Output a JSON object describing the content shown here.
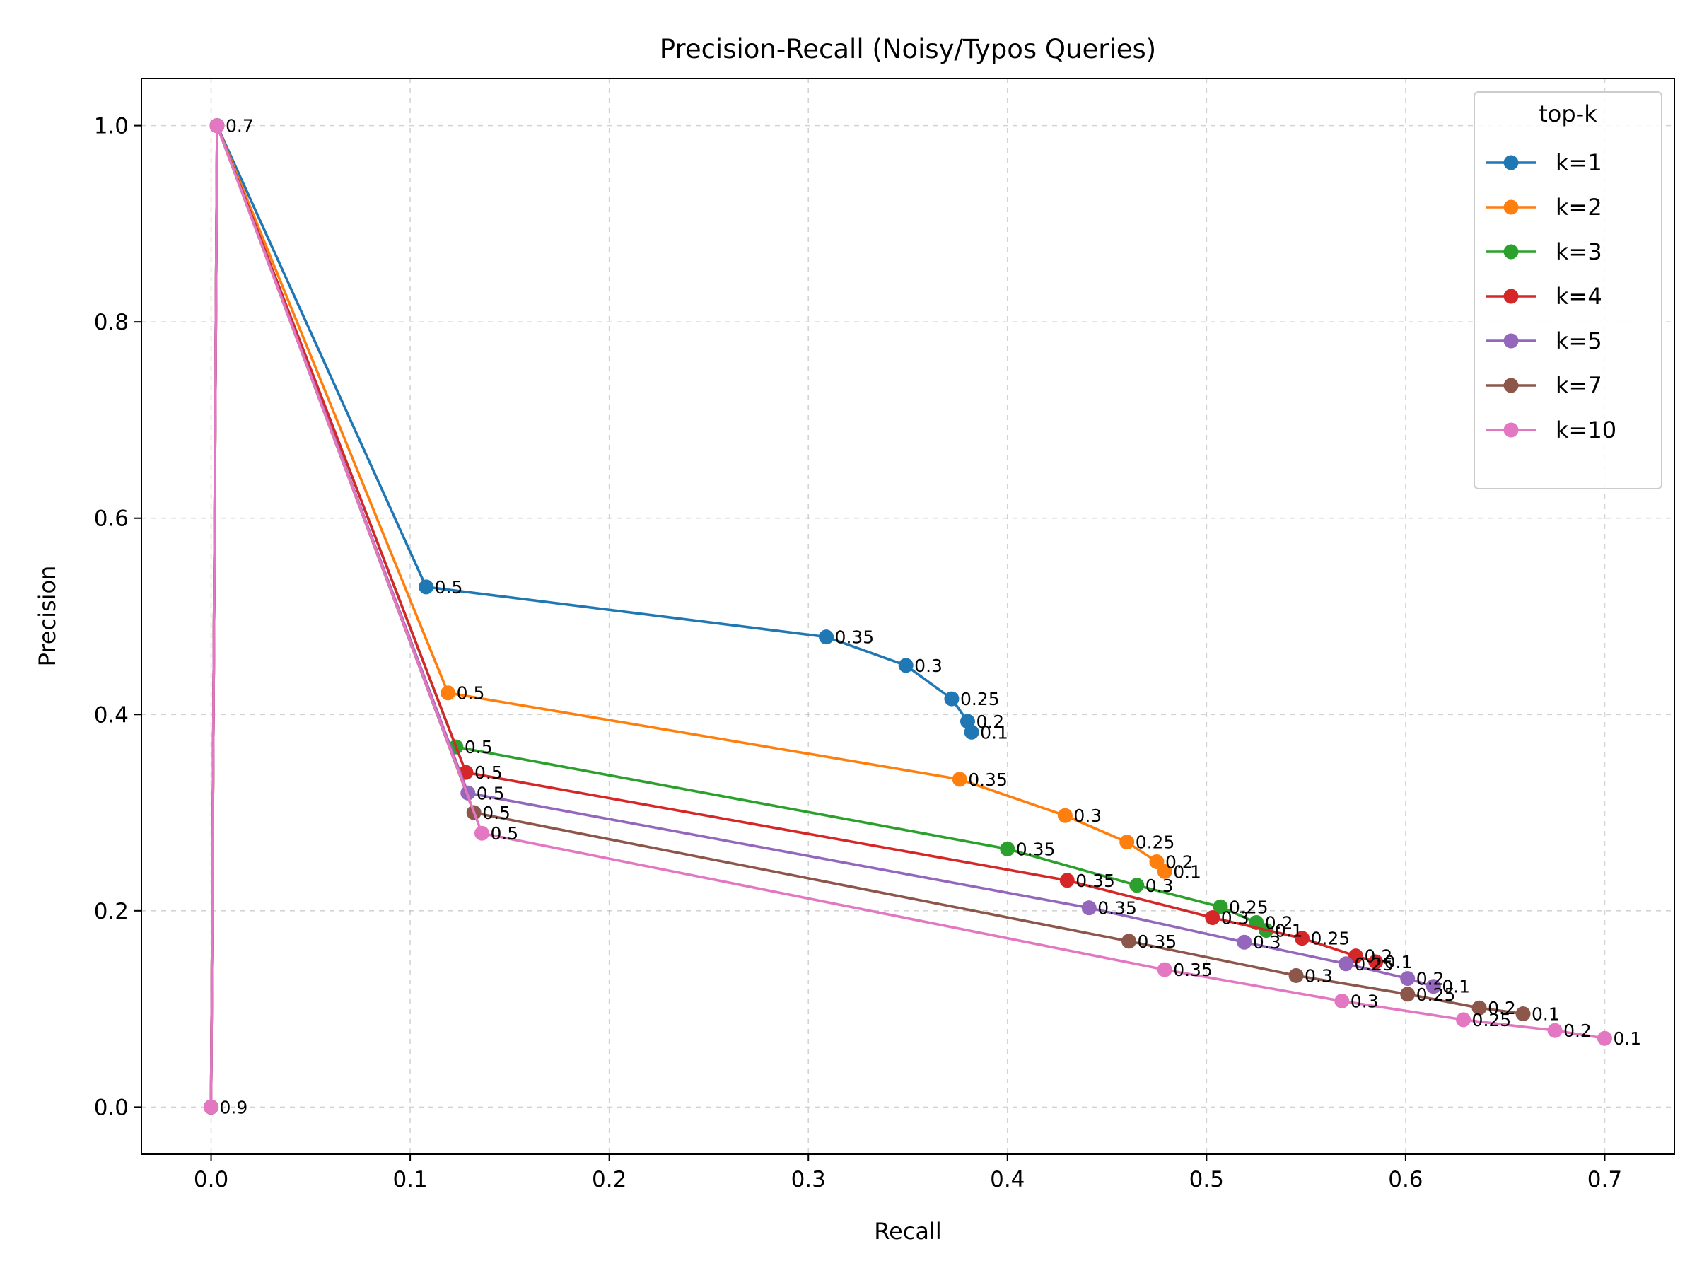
{
  "chart_data": {
    "type": "line",
    "title": "Precision-Recall (Noisy/Typos Queries)",
    "xlabel": "Recall",
    "ylabel": "Precision",
    "xlim": [
      -0.035,
      0.735
    ],
    "ylim": [
      -0.048,
      1.048
    ],
    "xticks": [
      "0.0",
      "0.1",
      "0.2",
      "0.3",
      "0.4",
      "0.5",
      "0.6",
      "0.7"
    ],
    "yticks": [
      "0.0",
      "0.2",
      "0.4",
      "0.6",
      "0.8",
      "1.0"
    ],
    "grid": true,
    "legend": {
      "title": "top-k",
      "position": "top-right"
    },
    "series": [
      {
        "name": "k=1",
        "color": "#1f77b4",
        "x": [
          0,
          0.003,
          0.108,
          0.309,
          0.349,
          0.372,
          0.38,
          0.382
        ],
        "y": [
          0,
          1.0,
          0.53,
          0.479,
          0.45,
          0.416,
          0.393,
          0.382
        ],
        "labels": [
          "",
          "",
          "0.5",
          "0.35",
          "0.3",
          "0.25",
          "0.2",
          "0.1"
        ]
      },
      {
        "name": "k=2",
        "color": "#ff7f0e",
        "x": [
          0,
          0.003,
          0.119,
          0.376,
          0.429,
          0.46,
          0.475,
          0.479
        ],
        "y": [
          0,
          1.0,
          0.422,
          0.334,
          0.297,
          0.27,
          0.25,
          0.24
        ],
        "labels": [
          "",
          "",
          "0.5",
          "0.35",
          "0.3",
          "0.25",
          "0.2",
          "0.1"
        ]
      },
      {
        "name": "k=3",
        "color": "#2ca02c",
        "x": [
          0,
          0.003,
          0.123,
          0.4,
          0.465,
          0.507,
          0.525,
          0.53
        ],
        "y": [
          0,
          1.0,
          0.367,
          0.263,
          0.226,
          0.204,
          0.188,
          0.18
        ],
        "labels": [
          "",
          "",
          "0.5",
          "0.35",
          "0.3",
          "0.25",
          "0.2",
          "0.1"
        ]
      },
      {
        "name": "k=4",
        "color": "#d62728",
        "x": [
          0,
          0.003,
          0.128,
          0.43,
          0.503,
          0.548,
          0.575,
          0.585
        ],
        "y": [
          0,
          1.0,
          0.341,
          0.231,
          0.193,
          0.172,
          0.154,
          0.148
        ],
        "labels": [
          "",
          "",
          "0.5",
          "0.35",
          "0.3",
          "0.25",
          "0.2",
          "0.1"
        ]
      },
      {
        "name": "k=5",
        "color": "#9467bd",
        "x": [
          0,
          0.003,
          0.129,
          0.441,
          0.519,
          0.57,
          0.601,
          0.614
        ],
        "y": [
          0,
          1.0,
          0.32,
          0.203,
          0.168,
          0.146,
          0.131,
          0.123
        ],
        "labels": [
          "",
          "",
          "0.5",
          "0.35",
          "0.3",
          "0.25",
          "0.2",
          "0.1"
        ]
      },
      {
        "name": "k=7",
        "color": "#8c564b",
        "x": [
          0,
          0.003,
          0.132,
          0.461,
          0.545,
          0.601,
          0.637,
          0.659
        ],
        "y": [
          0,
          1.0,
          0.3,
          0.169,
          0.134,
          0.115,
          0.101,
          0.095
        ],
        "labels": [
          "",
          "",
          "0.5",
          "0.35",
          "0.3",
          "0.25",
          "0.2",
          "0.1"
        ]
      },
      {
        "name": "k=10",
        "color": "#e377c2",
        "x": [
          0,
          0.003,
          0.136,
          0.479,
          0.568,
          0.629,
          0.675,
          0.7
        ],
        "y": [
          0,
          1.0,
          0.279,
          0.14,
          0.108,
          0.089,
          0.078,
          0.07
        ],
        "labels": [
          "0.9",
          "0.7",
          "0.5",
          "0.35",
          "0.3",
          "0.25",
          "0.2",
          "0.1"
        ]
      }
    ]
  }
}
